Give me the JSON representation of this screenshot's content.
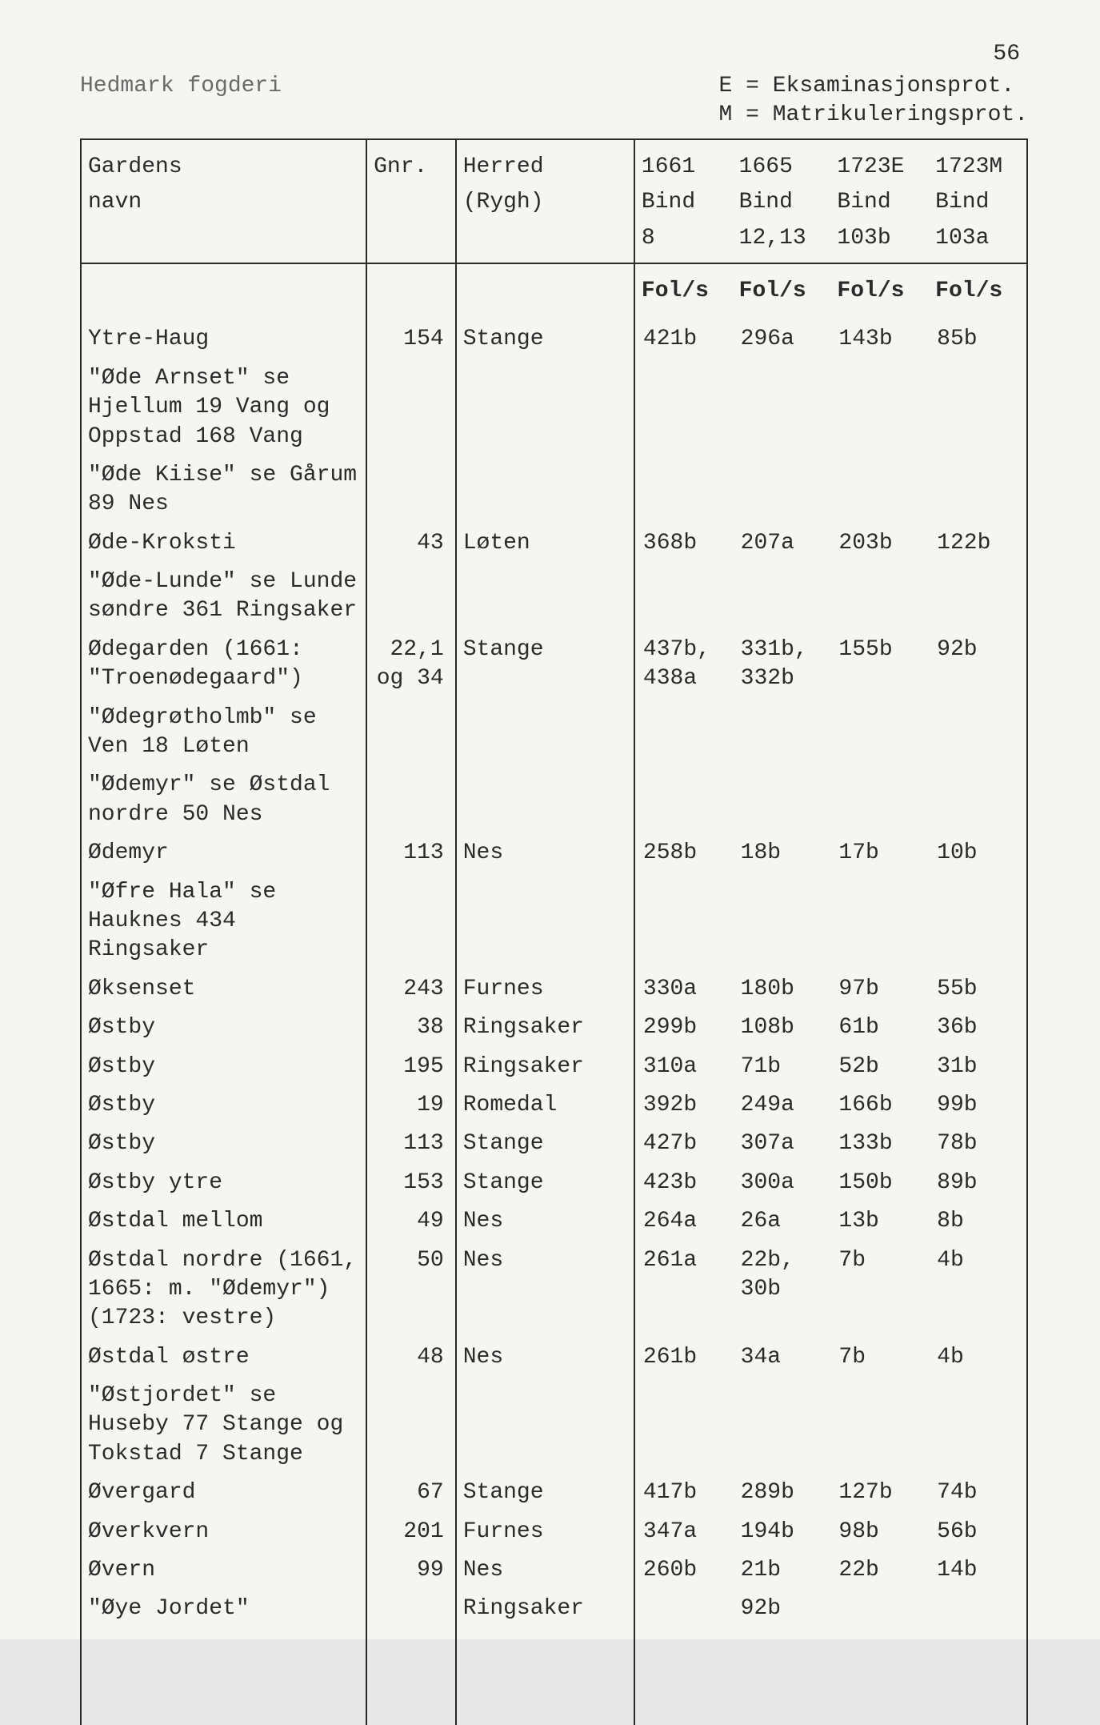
{
  "page_number": "56",
  "header": {
    "left": "Hedmark fogderi",
    "right_line1": "E = Eksaminasjonsprot.",
    "right_line2": "M = Matrikuleringsprot."
  },
  "columns": {
    "navn_line1": "Gardens",
    "navn_line2": "navn",
    "gnr": "Gnr.",
    "herred_line1": "Herred",
    "herred_line2": "(Rygh)",
    "y1_line1": "1661",
    "y1_line2": "Bind",
    "y1_line3": "8",
    "y2_line1": "1665",
    "y2_line2": "Bind",
    "y2_line3": "12,13",
    "y3_line1": "1723E",
    "y3_line2": "Bind",
    "y3_line3": "103b",
    "y4_line1": "1723M",
    "y4_line2": "Bind",
    "y4_line3": "103a",
    "fol": "Fol/s"
  },
  "rows": [
    {
      "type": "data",
      "navn": "Ytre-Haug",
      "gnr": "154",
      "herred": "Stange",
      "y1": "421b",
      "y2": "296a",
      "y3": "143b",
      "y4": "85b"
    },
    {
      "type": "note",
      "navn": "\"Øde Arnset\" se Hjellum 19 Vang og Oppstad 168 Vang"
    },
    {
      "type": "note",
      "navn": "\"Øde Kiise\" se Gårum 89 Nes"
    },
    {
      "type": "data",
      "navn": "Øde-Kroksti",
      "gnr": "43",
      "herred": "Løten",
      "y1": "368b",
      "y2": "207a",
      "y3": "203b",
      "y4": "122b"
    },
    {
      "type": "note",
      "navn": "\"Øde-Lunde\" se Lunde søndre 361 Ringsaker"
    },
    {
      "type": "data",
      "navn": "Ødegarden (1661: \"Troenødegaard\")",
      "gnr": "22,1 og 34",
      "herred": "Stange",
      "y1": "437b, 438a",
      "y2": "331b, 332b",
      "y3": "155b",
      "y4": "92b"
    },
    {
      "type": "note",
      "navn": "\"Ødegrøtholmb\" se Ven 18 Løten"
    },
    {
      "type": "note",
      "navn": "\"Ødemyr\" se Østdal nordre 50 Nes"
    },
    {
      "type": "data",
      "navn": "Ødemyr",
      "gnr": "113",
      "herred": "Nes",
      "y1": "258b",
      "y2": "18b",
      "y3": "17b",
      "y4": "10b"
    },
    {
      "type": "note",
      "navn": "\"Øfre Hala\" se Hauknes 434 Ringsaker"
    },
    {
      "type": "data",
      "navn": "Øksenset",
      "gnr": "243",
      "herred": "Furnes",
      "y1": "330a",
      "y2": "180b",
      "y3": "97b",
      "y4": "55b"
    },
    {
      "type": "data",
      "navn": "Østby",
      "gnr": "38",
      "herred": "Ringsaker",
      "y1": "299b",
      "y2": "108b",
      "y3": "61b",
      "y4": "36b"
    },
    {
      "type": "data",
      "navn": "Østby",
      "gnr": "195",
      "herred": "Ringsaker",
      "y1": "310a",
      "y2": "71b",
      "y3": "52b",
      "y4": "31b"
    },
    {
      "type": "data",
      "navn": "Østby",
      "gnr": "19",
      "herred": "Romedal",
      "y1": "392b",
      "y2": "249a",
      "y3": "166b",
      "y4": "99b"
    },
    {
      "type": "data",
      "navn": "Østby",
      "gnr": "113",
      "herred": "Stange",
      "y1": "427b",
      "y2": "307a",
      "y3": "133b",
      "y4": "78b"
    },
    {
      "type": "data",
      "navn": "Østby ytre",
      "gnr": "153",
      "herred": "Stange",
      "y1": "423b",
      "y2": "300a",
      "y3": "150b",
      "y4": "89b"
    },
    {
      "type": "data",
      "navn": "Østdal mellom",
      "gnr": "49",
      "herred": "Nes",
      "y1": "264a",
      "y2": "26a",
      "y3": "13b",
      "y4": "8b"
    },
    {
      "type": "data",
      "navn": "Østdal nordre (1661, 1665: m. \"Ødemyr\") (1723: vestre)",
      "gnr": "50",
      "herred": "Nes",
      "y1": "261a",
      "y2": "22b, 30b",
      "y3": "7b",
      "y4": "4b"
    },
    {
      "type": "data",
      "navn": "Østdal østre",
      "gnr": "48",
      "herred": "Nes",
      "y1": "261b",
      "y2": "34a",
      "y3": "7b",
      "y4": "4b"
    },
    {
      "type": "note",
      "navn": "\"Østjordet\" se Huseby 77 Stange og Tokstad 7 Stange"
    },
    {
      "type": "data",
      "navn": "Øvergard",
      "gnr": "67",
      "herred": "Stange",
      "y1": "417b",
      "y2": "289b",
      "y3": "127b",
      "y4": "74b"
    },
    {
      "type": "data",
      "navn": "Øverkvern",
      "gnr": "201",
      "herred": "Furnes",
      "y1": "347a",
      "y2": "194b",
      "y3": "98b",
      "y4": "56b"
    },
    {
      "type": "data",
      "navn": "Øvern",
      "gnr": "99",
      "herred": "Nes",
      "y1": "260b",
      "y2": "21b",
      "y3": "22b",
      "y4": "14b"
    },
    {
      "type": "data",
      "navn": "\"Øye Jordet\"",
      "gnr": "",
      "herred": "Ringsaker",
      "y1": "",
      "y2": "92b",
      "y3": "",
      "y4": ""
    }
  ],
  "style": {
    "background": "#f5f5f2",
    "text_color": "#2a2a2a",
    "muted_color": "#6a6a6a",
    "border_color": "#2a2a2a",
    "font_family": "Courier New",
    "font_size_pt": 21
  }
}
